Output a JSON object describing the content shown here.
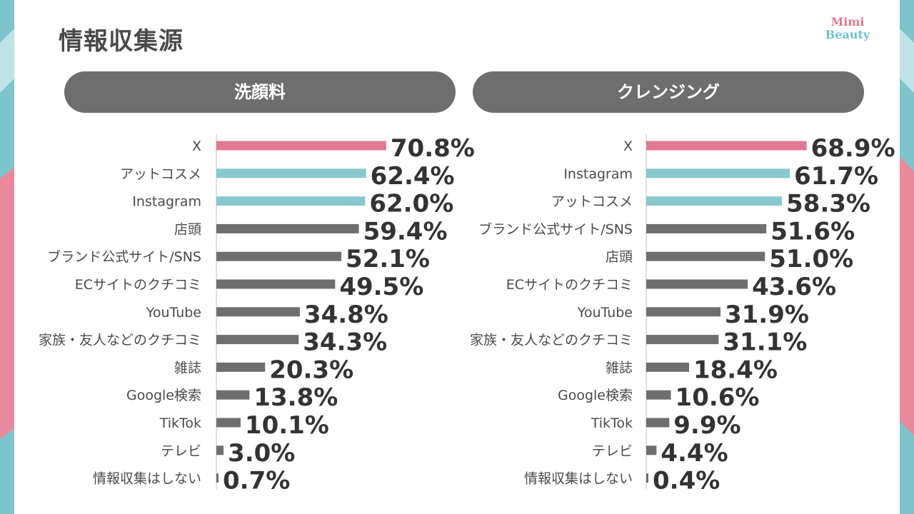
{
  "title": "情報収集源",
  "logo": {
    "line1": "Mimi",
    "line2": "Beauty"
  },
  "colors": {
    "top": "#e07a92",
    "second": "#8ac8d0",
    "rest": "#6e6e6e",
    "side_teal": "#7fc4cc",
    "side_pink": "#e8899c"
  },
  "chart_data": [
    {
      "type": "bar",
      "title": "洗顔料",
      "categories": [
        "X",
        "アットコスメ",
        "Instagram",
        "店頭",
        "ブランド公式サイト/SNS",
        "ECサイトのクチコミ",
        "YouTube",
        "家族・友人などのクチコミ",
        "雑誌",
        "Google検索",
        "TikTok",
        "テレビ",
        "情報収集はしない"
      ],
      "values": [
        70.8,
        62.4,
        62.0,
        59.4,
        52.1,
        49.5,
        34.8,
        34.3,
        20.3,
        13.8,
        10.1,
        3.0,
        0.7
      ],
      "labels": [
        "70.8%",
        "62.4%",
        "62.0%",
        "59.4%",
        "52.1%",
        "49.5%",
        "34.8%",
        "34.3%",
        "20.3%",
        "13.8%",
        "10.1%",
        "3.0%",
        "0.7%"
      ],
      "highlight": [
        "top",
        "second",
        "second",
        "rest",
        "rest",
        "rest",
        "rest",
        "rest",
        "rest",
        "rest",
        "rest",
        "rest",
        "rest"
      ]
    },
    {
      "type": "bar",
      "title": "クレンジング",
      "categories": [
        "X",
        "Instagram",
        "アットコスメ",
        "ブランド公式サイト/SNS",
        "店頭",
        "ECサイトのクチコミ",
        "YouTube",
        "家族・友人などのクチコミ",
        "雑誌",
        "Google検索",
        "TikTok",
        "テレビ",
        "情報収集はしない"
      ],
      "values": [
        68.9,
        61.7,
        58.3,
        51.6,
        51.0,
        43.6,
        31.9,
        31.1,
        18.4,
        10.6,
        9.9,
        4.4,
        0.4
      ],
      "labels": [
        "68.9%",
        "61.7%",
        "58.3%",
        "51.6%",
        "51.0%",
        "43.6%",
        "31.9%",
        "31.1%",
        "18.4%",
        "10.6%",
        "9.9%",
        "4.4%",
        "0.4%"
      ],
      "highlight": [
        "top",
        "second",
        "second",
        "rest",
        "rest",
        "rest",
        "rest",
        "rest",
        "rest",
        "rest",
        "rest",
        "rest",
        "rest"
      ]
    }
  ]
}
